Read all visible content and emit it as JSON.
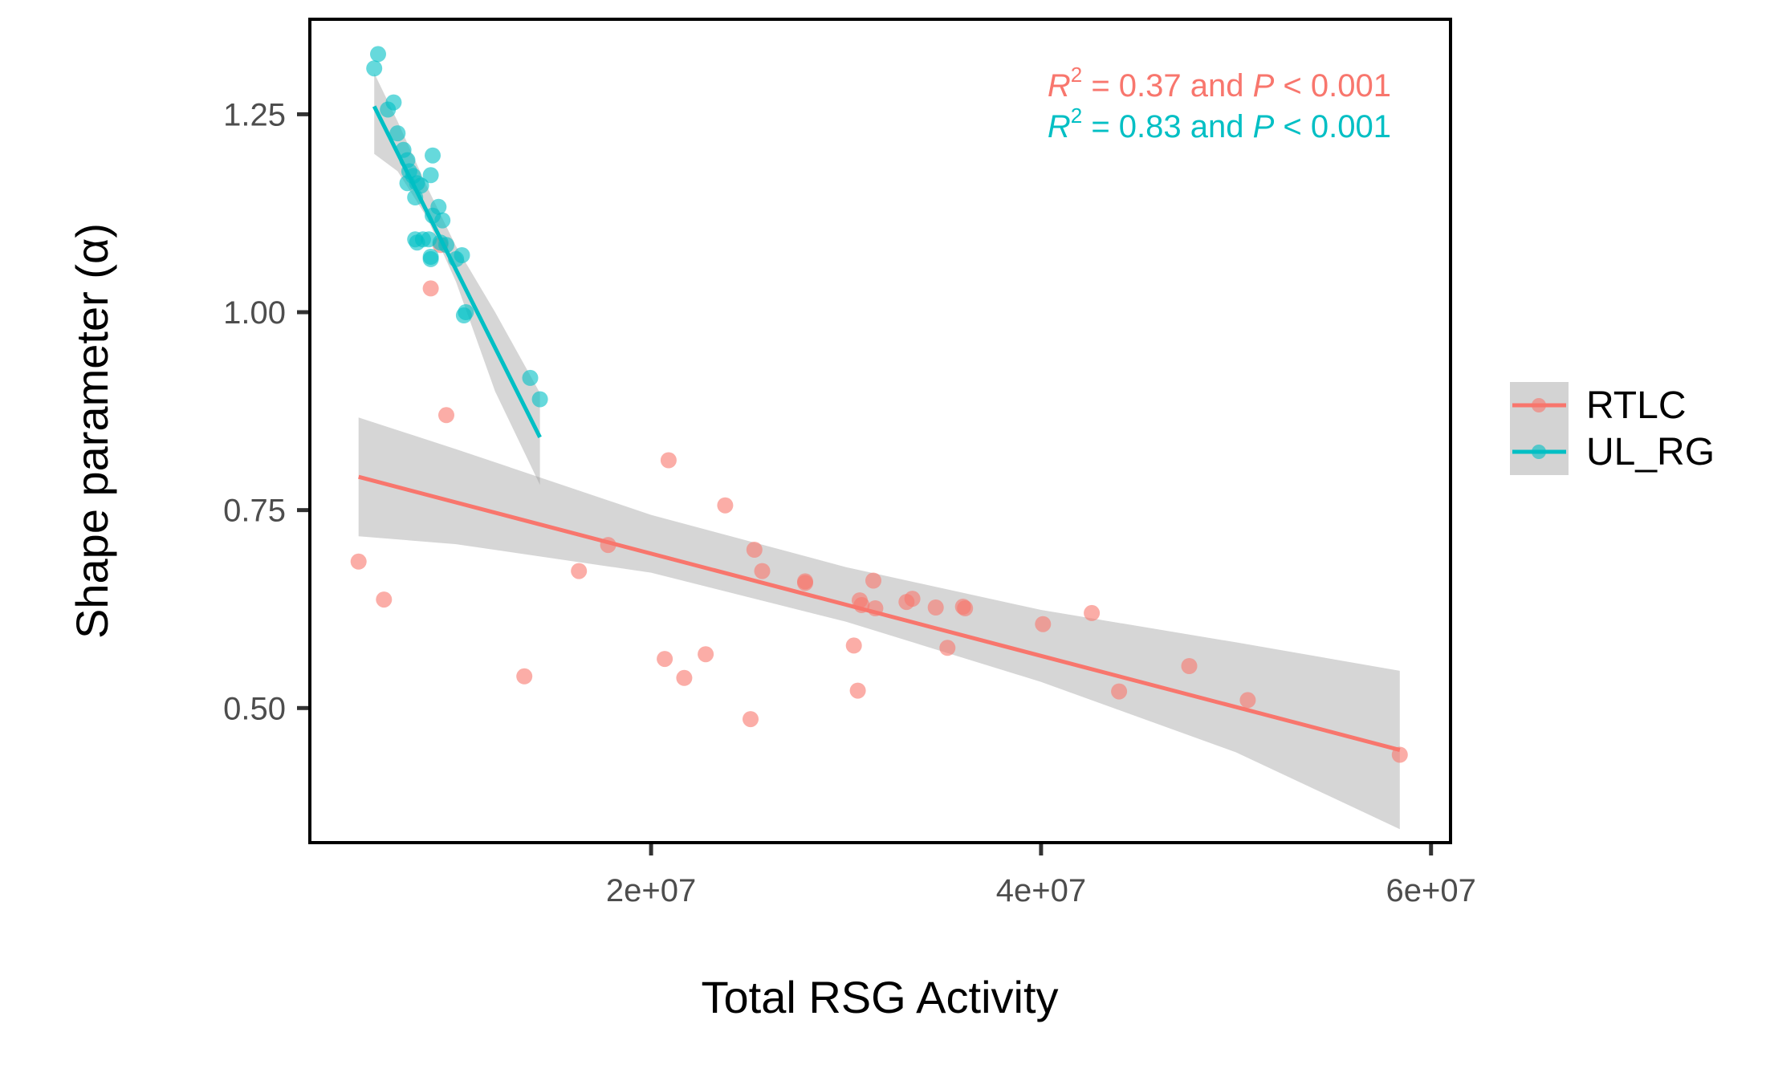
{
  "chart_data": {
    "type": "scatter",
    "title": "",
    "xlabel": "Total RSG Activity",
    "ylabel": "Shape parameter (α)",
    "xlim": [
      2500000,
      61000000
    ],
    "ylim": [
      0.33,
      1.37
    ],
    "x_ticks": [
      {
        "value": 20000000,
        "label": "2e+07"
      },
      {
        "value": 40000000,
        "label": "4e+07"
      },
      {
        "value": 60000000,
        "label": "6e+07"
      }
    ],
    "y_ticks": [
      {
        "value": 0.5,
        "label": "0.50"
      },
      {
        "value": 0.75,
        "label": "0.75"
      },
      {
        "value": 1.0,
        "label": "1.00"
      },
      {
        "value": 1.25,
        "label": "1.25"
      }
    ],
    "grid": false,
    "legend_position": "right",
    "series": [
      {
        "name": "RTLC",
        "color": "#F8766D",
        "points": [
          [
            5000000,
            0.685
          ],
          [
            6300000,
            0.637
          ],
          [
            8700000,
            1.03
          ],
          [
            9500000,
            0.87
          ],
          [
            9200000,
            1.085
          ],
          [
            13500000,
            0.54
          ],
          [
            16300000,
            0.673
          ],
          [
            17800000,
            0.706
          ],
          [
            20700000,
            0.562
          ],
          [
            20900000,
            0.813
          ],
          [
            21700000,
            0.538
          ],
          [
            22800000,
            0.568
          ],
          [
            23800000,
            0.756
          ],
          [
            25100000,
            0.486
          ],
          [
            25300000,
            0.7
          ],
          [
            25700000,
            0.673
          ],
          [
            27900000,
            0.66
          ],
          [
            27900000,
            0.658
          ],
          [
            30400000,
            0.579
          ],
          [
            30600000,
            0.522
          ],
          [
            30700000,
            0.636
          ],
          [
            30800000,
            0.63
          ],
          [
            31400000,
            0.661
          ],
          [
            31500000,
            0.626
          ],
          [
            33100000,
            0.634
          ],
          [
            33400000,
            0.638
          ],
          [
            34600000,
            0.627
          ],
          [
            35200000,
            0.576
          ],
          [
            36000000,
            0.628
          ],
          [
            36100000,
            0.626
          ],
          [
            40100000,
            0.606
          ],
          [
            42600000,
            0.62
          ],
          [
            44000000,
            0.521
          ],
          [
            47600000,
            0.553
          ],
          [
            50600000,
            0.51
          ],
          [
            58400000,
            0.441
          ]
        ],
        "fit_line": [
          [
            5000000,
            0.792
          ],
          [
            58400000,
            0.447
          ]
        ],
        "ci_band": {
          "x": [
            5000000,
            10000000,
            20000000,
            30000000,
            40000000,
            50000000,
            58400000
          ],
          "lower": [
            0.717,
            0.707,
            0.671,
            0.609,
            0.533,
            0.444,
            0.347
          ],
          "upper": [
            0.867,
            0.827,
            0.744,
            0.678,
            0.624,
            0.583,
            0.547
          ]
        }
      },
      {
        "name": "UL_RG",
        "color": "#00BFC4",
        "points": [
          [
            5800000,
            1.308
          ],
          [
            6000000,
            1.326
          ],
          [
            6500000,
            1.256
          ],
          [
            6800000,
            1.265
          ],
          [
            7000000,
            1.226
          ],
          [
            7300000,
            1.205
          ],
          [
            7500000,
            1.192
          ],
          [
            7500000,
            1.163
          ],
          [
            7600000,
            1.178
          ],
          [
            7800000,
            1.172
          ],
          [
            7900000,
            1.145
          ],
          [
            8000000,
            1.163
          ],
          [
            8200000,
            1.16
          ],
          [
            7900000,
            1.092
          ],
          [
            8000000,
            1.088
          ],
          [
            8300000,
            1.092
          ],
          [
            8700000,
            1.173
          ],
          [
            8800000,
            1.198
          ],
          [
            8800000,
            1.122
          ],
          [
            8600000,
            1.092
          ],
          [
            8700000,
            1.07
          ],
          [
            8700000,
            1.067
          ],
          [
            9100000,
            1.133
          ],
          [
            9200000,
            1.088
          ],
          [
            9300000,
            1.116
          ],
          [
            9500000,
            1.085
          ],
          [
            10000000,
            1.067
          ],
          [
            10300000,
            1.072
          ],
          [
            10400000,
            0.996
          ],
          [
            10500000,
            1.0
          ],
          [
            13800000,
            0.917
          ],
          [
            14300000,
            0.89
          ]
        ],
        "fit_line": [
          [
            5800000,
            1.26
          ],
          [
            14300000,
            0.842
          ]
        ],
        "ci_band": {
          "x": [
            5800000,
            7000000,
            8500000,
            10000000,
            12000000,
            14300000
          ],
          "lower": [
            1.2,
            1.178,
            1.12,
            1.038,
            0.9,
            0.782
          ],
          "upper": [
            1.302,
            1.241,
            1.159,
            1.083,
            1.0,
            0.898
          ]
        }
      }
    ],
    "annotations": [
      {
        "color": "#F8766D",
        "r_label": "R",
        "r_exp": "2",
        "mid": " = 0.37 and ",
        "p_label": "P",
        "tail": " < 0.001"
      },
      {
        "color": "#00BFC4",
        "r_label": "R",
        "r_exp": "2",
        "mid": " = 0.83 and ",
        "p_label": "P",
        "tail": " < 0.001"
      }
    ]
  }
}
